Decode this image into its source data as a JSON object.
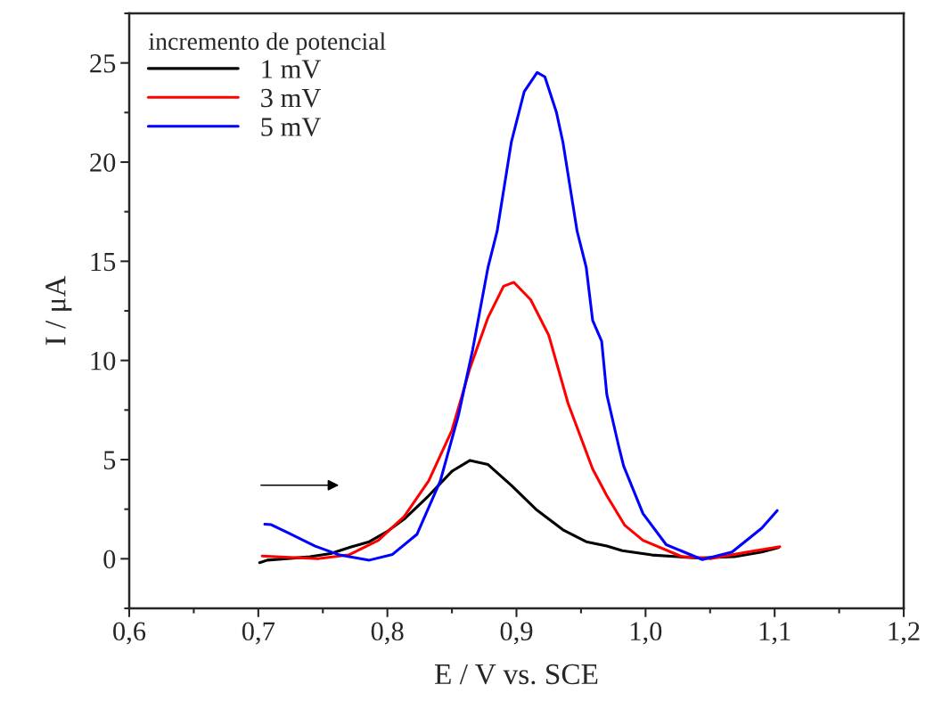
{
  "chart_data": {
    "type": "line",
    "xlabel": "E / V vs. SCE",
    "ylabel": "I / μA",
    "legend_title": "incremento de potencial",
    "legend": "top left",
    "grid": false,
    "marker": "none",
    "line_style": "solid",
    "xlim": [
      0.6,
      1.2
    ],
    "ylim": [
      -2.5,
      27.5
    ],
    "xticks": [
      {
        "value": 0.6,
        "label": "0,6"
      },
      {
        "value": 0.7,
        "label": "0,7"
      },
      {
        "value": 0.8,
        "label": "0,8"
      },
      {
        "value": 0.9,
        "label": "0,9"
      },
      {
        "value": 1.0,
        "label": "1,0"
      },
      {
        "value": 1.1,
        "label": "1,1"
      },
      {
        "value": 1.2,
        "label": "1,2"
      }
    ],
    "yticks": [
      0,
      5,
      10,
      15,
      20,
      25
    ],
    "series": [
      {
        "name": "1 mV",
        "color": "#000000",
        "x": [
          0.701,
          0.707,
          0.74,
          0.756,
          0.772,
          0.786,
          0.8,
          0.813,
          0.832,
          0.85,
          0.864,
          0.878,
          0.896,
          0.915,
          0.936,
          0.954,
          0.97,
          0.982,
          1.005,
          1.04,
          1.069,
          1.09,
          1.103
        ],
        "values": [
          -0.2,
          -0.07,
          0.1,
          0.26,
          0.6,
          0.86,
          1.38,
          2.0,
          3.18,
          4.41,
          4.96,
          4.75,
          3.7,
          2.5,
          1.46,
          0.86,
          0.64,
          0.41,
          0.19,
          0.04,
          0.11,
          0.34,
          0.56
        ]
      },
      {
        "name": "3 mV",
        "color": "#ff0000",
        "x": [
          0.703,
          0.746,
          0.77,
          0.793,
          0.813,
          0.832,
          0.85,
          0.864,
          0.878,
          0.89,
          0.898,
          0.911,
          0.925,
          0.94,
          0.959,
          0.97,
          0.984,
          0.998,
          1.028,
          1.051,
          1.079,
          1.104
        ],
        "values": [
          0.14,
          0.0,
          0.19,
          0.93,
          2.13,
          3.93,
          6.48,
          9.62,
          12.17,
          13.74,
          13.94,
          13.06,
          11.27,
          7.83,
          4.53,
          3.18,
          1.68,
          0.93,
          0.11,
          0.01,
          0.34,
          0.61
        ]
      },
      {
        "name": "5 mV",
        "color": "#0000ff",
        "x": [
          0.705,
          0.71,
          0.723,
          0.744,
          0.763,
          0.786,
          0.804,
          0.823,
          0.841,
          0.855,
          0.866,
          0.878,
          0.885,
          0.896,
          0.906,
          0.916,
          0.922,
          0.931,
          0.936,
          0.947,
          0.954,
          0.959,
          0.966,
          0.97,
          0.979,
          0.983,
          0.998,
          1.016,
          1.044,
          1.067,
          1.09,
          1.102
        ],
        "values": [
          1.74,
          1.72,
          1.31,
          0.64,
          0.19,
          -0.07,
          0.22,
          1.24,
          3.93,
          7.22,
          10.52,
          14.71,
          16.51,
          21.0,
          23.55,
          24.52,
          24.3,
          22.5,
          21.0,
          16.51,
          14.71,
          12.02,
          10.97,
          8.27,
          5.73,
          4.68,
          2.28,
          0.71,
          -0.04,
          0.34,
          1.54,
          2.43
        ]
      }
    ]
  }
}
